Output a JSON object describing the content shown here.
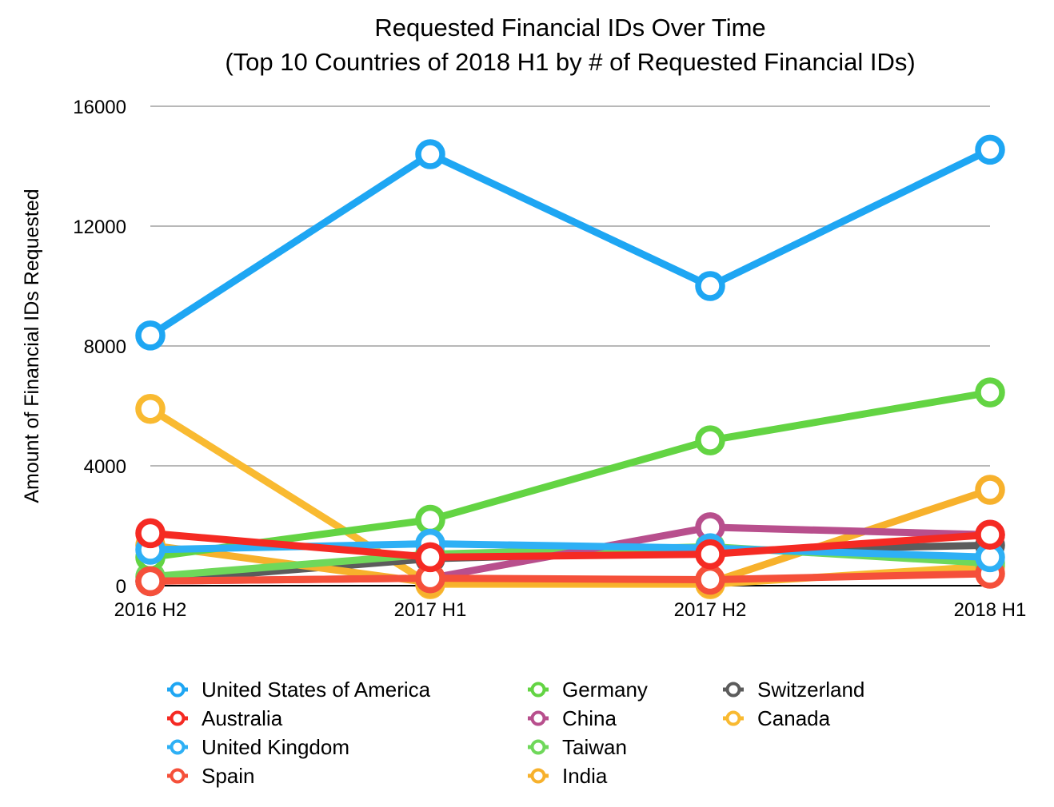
{
  "chart_data": {
    "type": "line",
    "title_lines": [
      "Requested Financial IDs Over Time",
      "(Top 10 Countries of 2018 H1 by # of Requested Financial IDs)"
    ],
    "xlabel": "",
    "ylabel": "Amount of Financial IDs Requested",
    "categories": [
      "2016 H2",
      "2017 H1",
      "2017 H2",
      "2018 H1"
    ],
    "ylim": [
      0,
      16000
    ],
    "yticks": [
      0,
      4000,
      8000,
      12000,
      16000
    ],
    "grid": true,
    "legend_position": "bottom",
    "series": [
      {
        "name": "United States of America",
        "color": "#1ea6f3",
        "values": [
          8350,
          14400,
          10000,
          14550
        ]
      },
      {
        "name": "Australia",
        "color": "#f52a23",
        "values": [
          1750,
          950,
          1050,
          1700
        ]
      },
      {
        "name": "United Kingdom",
        "color": "#2eb0f5",
        "values": [
          1200,
          1400,
          1250,
          950
        ]
      },
      {
        "name": "Spain",
        "color": "#f5503a",
        "values": [
          150,
          250,
          200,
          400
        ]
      },
      {
        "name": "Germany",
        "color": "#63d443",
        "values": [
          950,
          2200,
          4850,
          6450
        ]
      },
      {
        "name": "China",
        "color": "#b84f8d",
        "values": [
          150,
          250,
          1950,
          1700
        ]
      },
      {
        "name": "Taiwan",
        "color": "#6fd85a",
        "values": [
          300,
          1050,
          1300,
          750
        ]
      },
      {
        "name": "India",
        "color": "#f7b12c",
        "values": [
          1350,
          100,
          100,
          3200
        ]
      },
      {
        "name": "Switzerland",
        "color": "#5c5c5c",
        "values": [
          150,
          900,
          1150,
          1350
        ]
      },
      {
        "name": "Canada",
        "color": "#f9ba31",
        "values": [
          5900,
          50,
          50,
          650
        ]
      }
    ]
  }
}
